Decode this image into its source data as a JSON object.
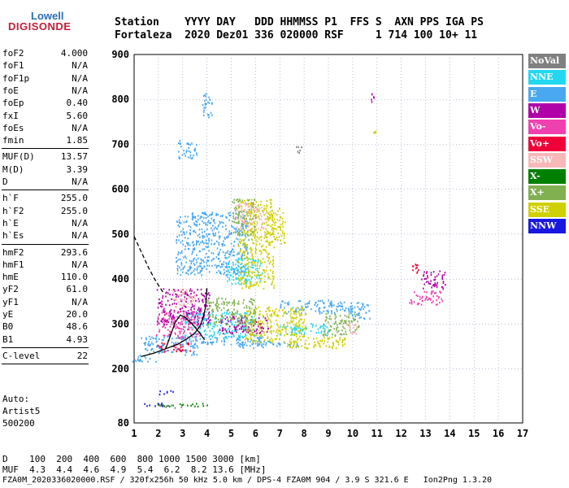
{
  "logo": {
    "line1": "Lowell",
    "line2": "DIGISONDE"
  },
  "header": {
    "row1": "Station    YYYY DAY   DDD HHMMSS P1  FFS S  AXN PPS IGA PS",
    "row2": "Fortaleza  2020 Dez01 336 020000 RSF     1 714 100 10+ 11"
  },
  "params_groups": [
    [
      [
        "foF2",
        "4.000"
      ],
      [
        "foF1",
        "N/A"
      ],
      [
        "foF1p",
        "N/A"
      ],
      [
        "foE",
        "N/A"
      ],
      [
        "foEp",
        "0.40"
      ],
      [
        "fxI",
        "5.60"
      ],
      [
        "foEs",
        "N/A"
      ],
      [
        "fmin",
        "1.85"
      ]
    ],
    [
      [
        "MUF(D)",
        "13.57"
      ],
      [
        "M(D)",
        "3.39"
      ],
      [
        "D",
        "N/A"
      ]
    ],
    [
      [
        "h`F",
        "255.0"
      ],
      [
        "h`F2",
        "255.0"
      ],
      [
        "h`E",
        "N/A"
      ],
      [
        "h`Es",
        "N/A"
      ]
    ],
    [
      [
        "hmF2",
        "293.6"
      ],
      [
        "hmF1",
        "N/A"
      ],
      [
        "hmE",
        "110.0"
      ],
      [
        "yF2",
        "61.0"
      ],
      [
        "yF1",
        "N/A"
      ],
      [
        "yE",
        "20.0"
      ],
      [
        "B0",
        "48.6"
      ],
      [
        "B1",
        "4.93"
      ]
    ],
    [
      [
        "C-level",
        "22"
      ]
    ]
  ],
  "auto": [
    "Auto:",
    "Artist5",
    "500200"
  ],
  "legend": [
    {
      "label": "NoVal",
      "color": "#808080"
    },
    {
      "label": "NNE",
      "color": "#22d8f0"
    },
    {
      "label": "E",
      "color": "#49a8f0"
    },
    {
      "label": "W",
      "color": "#b000a8"
    },
    {
      "label": "Vo-",
      "color": "#f040b0"
    },
    {
      "label": "Vo+",
      "color": "#f00038"
    },
    {
      "label": "SSW",
      "color": "#f8b8b8"
    },
    {
      "label": "X-",
      "color": "#008000"
    },
    {
      "label": "X+",
      "color": "#80b050"
    },
    {
      "label": "SSE",
      "color": "#d0d000"
    },
    {
      "label": "NNW",
      "color": "#1818e0"
    }
  ],
  "bottom": {
    "d_row": "D    100  200  400  600  800 1000 1500 3000 [km]",
    "muf_row": "MUF  4.3  4.4  4.6  4.9  5.4  6.2  8.2 13.6 [MHz]",
    "footer": "FZA0M_2020336020000.RSF / 320fx256h 50 kHz 5.0 km / DPS-4 FZA0M 904 / 3.9 S 321.6 E   Ion2Png 1.3.20"
  },
  "chart_data": {
    "type": "scatter",
    "title": "",
    "xlabel": "",
    "ylabel": "",
    "xlim": [
      1,
      17
    ],
    "ylim": [
      80,
      900
    ],
    "x_ticks": [
      1,
      2,
      3,
      4,
      5,
      6,
      7,
      8,
      9,
      10,
      11,
      12,
      13,
      14,
      15,
      16,
      17
    ],
    "y_ticks": [
      80,
      200,
      300,
      400,
      500,
      600,
      700,
      800,
      900
    ],
    "grid": "dotted",
    "series": [
      {
        "name": "E",
        "color": "#49a8f0",
        "points": [
          {
            "x": 2.5,
            "y": 245,
            "w": 2.2,
            "h": 25
          },
          {
            "x": 4.0,
            "y": 265,
            "w": 5.5,
            "h": 20
          },
          {
            "x": 6.5,
            "y": 255,
            "w": 2.5,
            "h": 15
          },
          {
            "x": 4.2,
            "y": 480,
            "w": 3.0,
            "h": 140
          },
          {
            "x": 3.2,
            "y": 690,
            "w": 0.8,
            "h": 40
          },
          {
            "x": 4.0,
            "y": 790,
            "w": 0.4,
            "h": 60
          },
          {
            "x": 8.5,
            "y": 340,
            "w": 3.0,
            "h": 30
          },
          {
            "x": 10.3,
            "y": 330,
            "w": 0.8,
            "h": 40
          },
          {
            "x": 1.4,
            "y": 225,
            "w": 1.0,
            "h": 15
          }
        ]
      },
      {
        "name": "NNE",
        "color": "#22d8f0",
        "points": [
          {
            "x": 4.5,
            "y": 300,
            "w": 3.0,
            "h": 60
          },
          {
            "x": 8.0,
            "y": 290,
            "w": 2.0,
            "h": 25
          },
          {
            "x": 5.5,
            "y": 420,
            "w": 1.5,
            "h": 60
          }
        ]
      },
      {
        "name": "W",
        "color": "#b000a8",
        "points": [
          {
            "x": 3.0,
            "y": 340,
            "w": 2.2,
            "h": 80
          },
          {
            "x": 5.5,
            "y": 300,
            "w": 2.0,
            "h": 40
          },
          {
            "x": 13.3,
            "y": 400,
            "w": 1.0,
            "h": 40
          },
          {
            "x": 10.8,
            "y": 805,
            "w": 0.12,
            "h": 20
          }
        ]
      },
      {
        "name": "Vo-",
        "color": "#f040b0",
        "points": [
          {
            "x": 2.8,
            "y": 300,
            "w": 1.8,
            "h": 60
          },
          {
            "x": 13.0,
            "y": 360,
            "w": 1.4,
            "h": 30
          }
        ]
      },
      {
        "name": "Vo+",
        "color": "#f00038",
        "points": [
          {
            "x": 2.6,
            "y": 250,
            "w": 1.4,
            "h": 20
          },
          {
            "x": 12.6,
            "y": 420,
            "w": 0.3,
            "h": 30
          }
        ]
      },
      {
        "name": "SSE",
        "color": "#d0d000",
        "points": [
          {
            "x": 6.8,
            "y": 300,
            "w": 2.5,
            "h": 80
          },
          {
            "x": 8.5,
            "y": 260,
            "w": 2.5,
            "h": 25
          },
          {
            "x": 6.0,
            "y": 480,
            "w": 1.5,
            "h": 200
          },
          {
            "x": 6.8,
            "y": 520,
            "w": 0.8,
            "h": 80
          },
          {
            "x": 10.9,
            "y": 730,
            "w": 0.12,
            "h": 12
          }
        ]
      },
      {
        "name": "X+",
        "color": "#80b050",
        "points": [
          {
            "x": 5.0,
            "y": 330,
            "w": 2.0,
            "h": 60
          },
          {
            "x": 5.5,
            "y": 540,
            "w": 1.0,
            "h": 80
          },
          {
            "x": 9.5,
            "y": 300,
            "w": 1.5,
            "h": 50
          }
        ]
      },
      {
        "name": "SSW",
        "color": "#f8b8b8",
        "points": [
          {
            "x": 5.8,
            "y": 540,
            "w": 1.2,
            "h": 60
          },
          {
            "x": 9.9,
            "y": 290,
            "w": 0.5,
            "h": 25
          },
          {
            "x": 3.0,
            "y": 360,
            "w": 1.0,
            "h": 40
          }
        ]
      },
      {
        "name": "X-",
        "color": "#008000",
        "points": [
          {
            "x": 3.5,
            "y": 122,
            "w": 1.0,
            "h": 8
          },
          {
            "x": 2.5,
            "y": 120,
            "w": 1.2,
            "h": 8
          }
        ]
      },
      {
        "name": "NNW",
        "color": "#1818e0",
        "points": [
          {
            "x": 1.8,
            "y": 122,
            "w": 0.8,
            "h": 8
          },
          {
            "x": 2.3,
            "y": 150,
            "w": 0.6,
            "h": 10
          }
        ]
      },
      {
        "name": "NoVal",
        "color": "#808080",
        "points": [
          {
            "x": 2.5,
            "y": 118,
            "w": 1.0,
            "h": 6
          },
          {
            "x": 7.8,
            "y": 690,
            "w": 0.3,
            "h": 15
          }
        ]
      }
    ],
    "traces": [
      {
        "name": "virtual-height-trace",
        "color": "#000000",
        "style": "solid",
        "points": [
          [
            1.3,
            228
          ],
          [
            1.8,
            235
          ],
          [
            2.3,
            245
          ],
          [
            2.8,
            255
          ],
          [
            3.2,
            268
          ],
          [
            3.5,
            280
          ],
          [
            3.7,
            295
          ],
          [
            3.85,
            315
          ],
          [
            3.95,
            340
          ],
          [
            4.0,
            380
          ]
        ]
      },
      {
        "name": "profile-trace",
        "color": "#000000",
        "style": "solid",
        "points": [
          [
            2.3,
            245
          ],
          [
            2.5,
            275
          ],
          [
            2.7,
            305
          ],
          [
            2.9,
            320
          ],
          [
            3.1,
            315
          ],
          [
            3.4,
            300
          ],
          [
            3.7,
            280
          ],
          [
            3.9,
            265
          ]
        ]
      },
      {
        "name": "muf-trace",
        "color": "#000000",
        "style": "dashed",
        "points": [
          [
            1.0,
            495
          ],
          [
            1.3,
            460
          ],
          [
            1.6,
            425
          ],
          [
            1.9,
            395
          ],
          [
            2.2,
            370
          ]
        ]
      }
    ]
  }
}
